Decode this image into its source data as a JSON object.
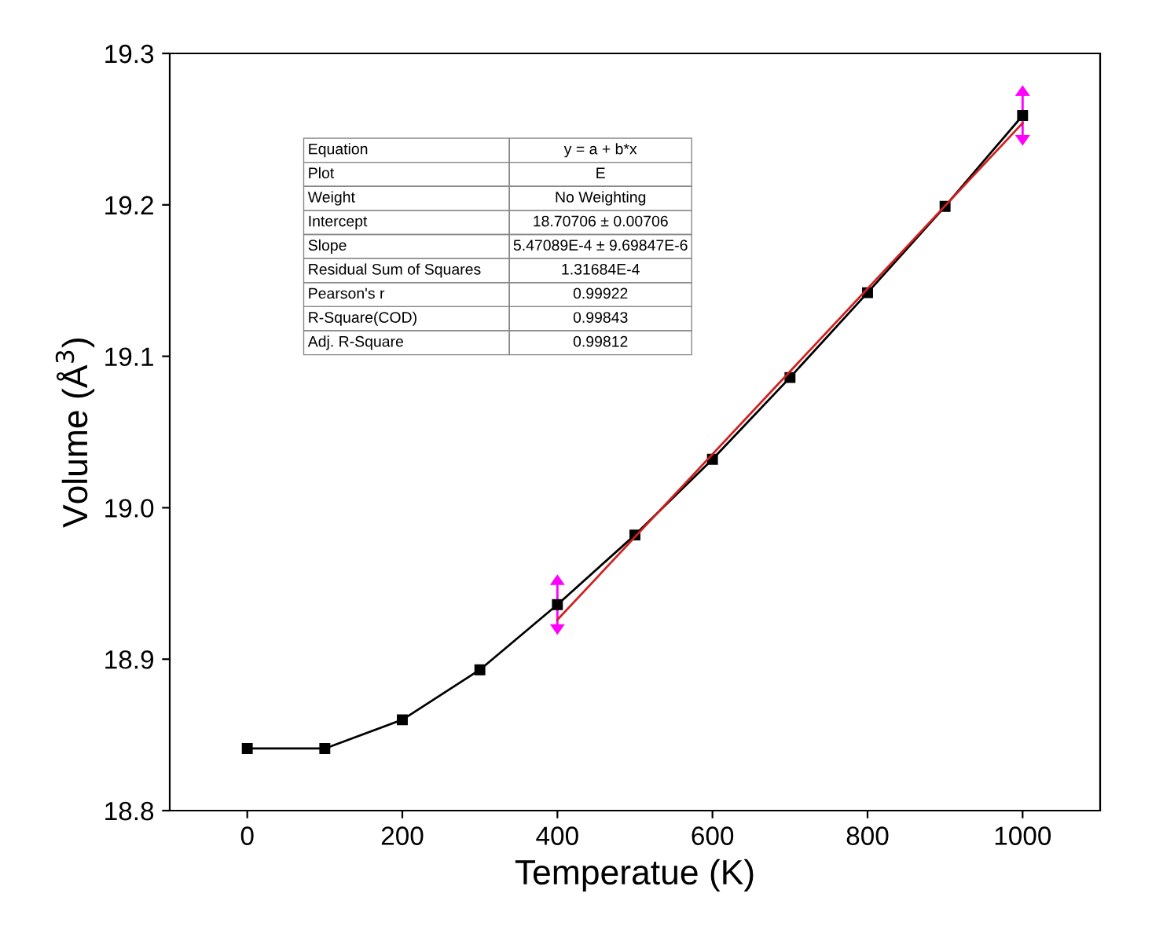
{
  "chart_data": {
    "type": "line",
    "xlabel": "Temperatue (K)",
    "ylabel": "Volume (Å$^{3}$)",
    "xlim": [
      -100,
      1100
    ],
    "xticks": [
      0,
      200,
      400,
      600,
      800,
      1000
    ],
    "ylim": [
      18.8,
      19.3
    ],
    "yticks": [
      18.8,
      18.9,
      {
        "value": 19.0,
        "label": "19.0"
      },
      19.1,
      19.2,
      19.3
    ],
    "grid": false,
    "legend": false,
    "series": [
      {
        "color": "#000000",
        "marker": "square",
        "x": [
          0,
          100,
          200,
          300,
          400,
          500,
          600,
          700,
          800,
          900,
          1000
        ],
        "values": [
          18.841,
          18.841,
          18.86,
          18.893,
          18.936,
          18.982,
          19.032,
          19.086,
          19.142,
          19.199,
          19.259
        ]
      },
      {
        "type": "line",
        "color": "#d02020",
        "marker": "none",
        "x": [
          400,
          1000
        ],
        "values": [
          18.926,
          19.254
        ]
      }
    ],
    "annotations": [
      "Equation",
      "y = a + b*x",
      "Plot",
      "E",
      "Weight",
      "No Weighting",
      "Intercept",
      "18.70706 ± 0.00706",
      "Slope",
      "5.47089E-4 ± 9.69847E-6",
      "Residual Sum of Squares",
      "1.31684E-4",
      "Pearson's r",
      "0.99922",
      "R-Square(COD)",
      "0.99843",
      "Adj. R-Square",
      "0.99812"
    ]
  }
}
